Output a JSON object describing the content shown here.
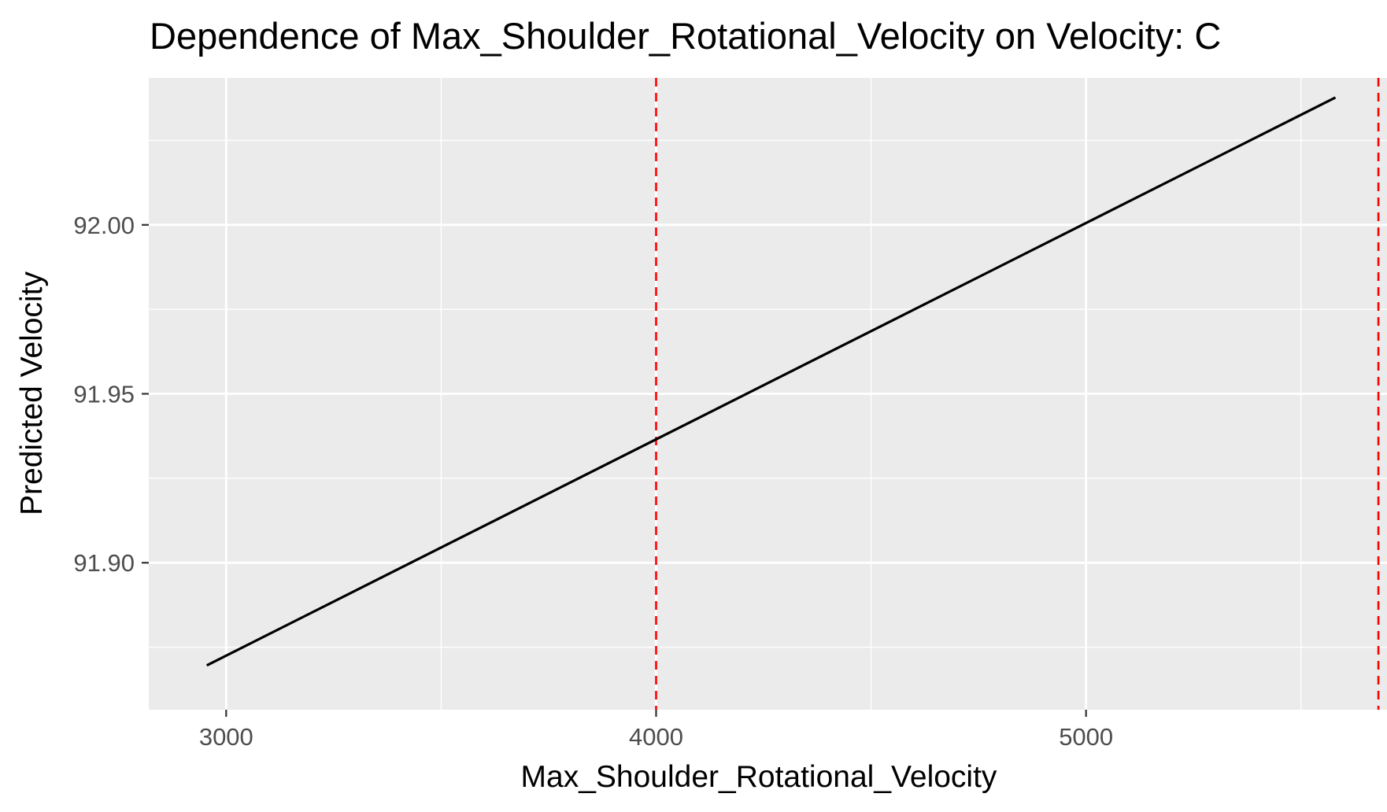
{
  "chart_data": {
    "type": "line",
    "title": "Dependence of Max_Shoulder_Rotational_Velocity on Velocity: C",
    "xlabel": "Max_Shoulder_Rotational_Velocity",
    "ylabel": "Predicted Velocity",
    "xlim": [
      2820,
      5700
    ],
    "ylim": [
      91.8565,
      92.0435
    ],
    "x_ticks": [
      3000,
      4000,
      5000
    ],
    "x_tick_labels": [
      "3000",
      "4000",
      "5000"
    ],
    "y_ticks": [
      91.9,
      91.95,
      92.0
    ],
    "y_tick_labels": [
      "91.90",
      "91.95",
      "92.00"
    ],
    "x_minor_gridlines": [
      3500,
      4500,
      5500
    ],
    "y_minor_gridlines": [
      91.875,
      91.925,
      91.975,
      92.025
    ],
    "grid": true,
    "series": [
      {
        "x": [
          2955,
          5580
        ],
        "y": [
          91.8696,
          92.0377
        ],
        "color": "#000000"
      }
    ],
    "reference_lines": [
      {
        "x": 4000,
        "color": "#ff0000",
        "style": "dashed"
      },
      {
        "x": 5680,
        "color": "#ff0000",
        "style": "dashed"
      }
    ],
    "panel_background": "#ebebeb",
    "gridline_color": "#ffffff"
  }
}
